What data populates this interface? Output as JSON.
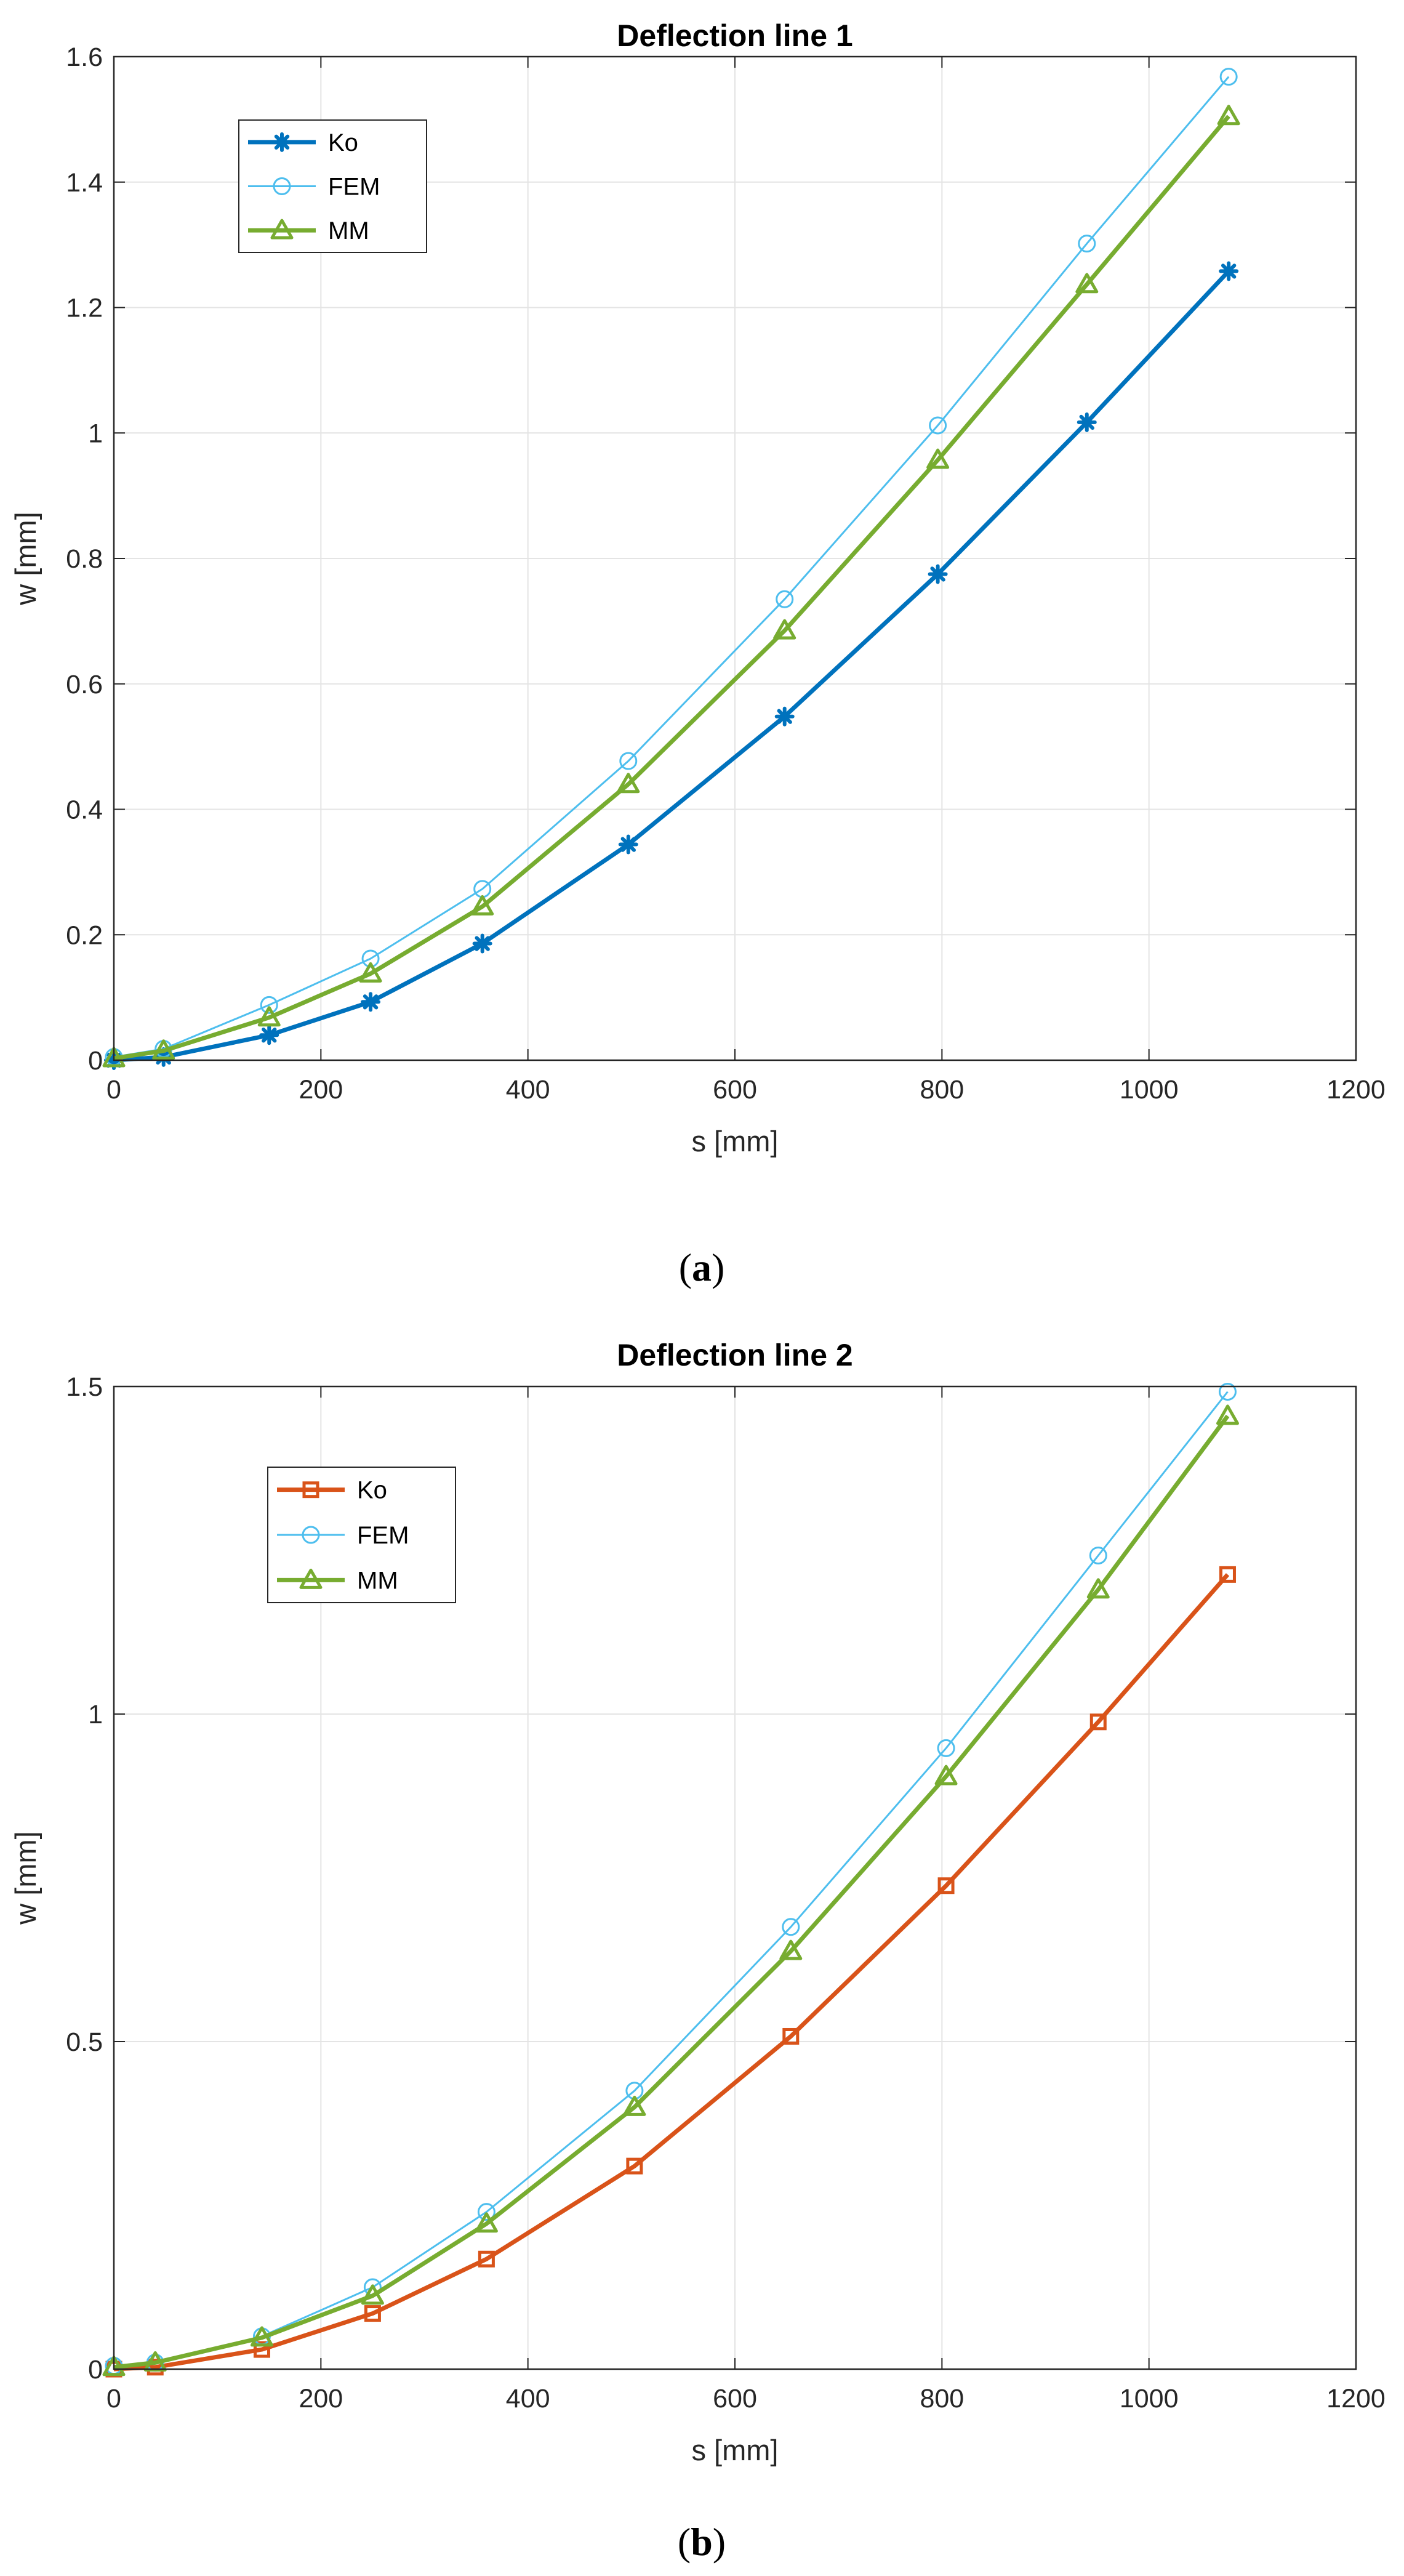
{
  "chart_data": [
    {
      "type": "line",
      "title": "Deflection line 1",
      "xlabel": "s [mm]",
      "ylabel": "w [mm]",
      "xlim": [
        0,
        1200
      ],
      "ylim": [
        0,
        1.6
      ],
      "xticks": [
        0,
        200,
        400,
        600,
        800,
        1000,
        1200
      ],
      "yticks": [
        0,
        0.2,
        0.4,
        0.6,
        0.8,
        1,
        1.2,
        1.4,
        1.6
      ],
      "xtick_labels": [
        "0",
        "200",
        "400",
        "600",
        "800",
        "1000",
        "1200"
      ],
      "ytick_labels": [
        "0",
        "0.2",
        "0.4",
        "0.6",
        "0.8",
        "1",
        "1.2",
        "1.4",
        "1.6"
      ],
      "grid": true,
      "legend_position": "top-left",
      "caption": "a",
      "series": [
        {
          "name": "Ko",
          "color": "#0072BD",
          "marker": "asterisk",
          "line": "thick",
          "x": [
            0,
            48,
            150,
            248,
            356,
            497,
            648,
            796,
            940,
            1077
          ],
          "y": [
            0.0,
            0.005,
            0.04,
            0.093,
            0.186,
            0.344,
            0.548,
            0.775,
            1.017,
            1.258
          ]
        },
        {
          "name": "FEM",
          "color": "#4DBEEE",
          "marker": "circle",
          "line": "thin",
          "x": [
            0,
            48,
            150,
            248,
            356,
            497,
            648,
            796,
            940,
            1077
          ],
          "y": [
            0.005,
            0.018,
            0.088,
            0.162,
            0.273,
            0.477,
            0.735,
            1.012,
            1.302,
            1.568
          ]
        },
        {
          "name": "MM",
          "color": "#77AC30",
          "marker": "triangle",
          "line": "thick",
          "x": [
            0,
            48,
            150,
            248,
            356,
            497,
            648,
            796,
            940,
            1077
          ],
          "y": [
            0.003,
            0.015,
            0.068,
            0.138,
            0.245,
            0.44,
            0.685,
            0.957,
            1.237,
            1.505
          ]
        }
      ]
    },
    {
      "type": "line",
      "title": "Deflection line 2",
      "xlabel": "s [mm]",
      "ylabel": "w [mm]",
      "xlim": [
        0,
        1200
      ],
      "ylim": [
        0,
        1.5
      ],
      "xticks": [
        0,
        200,
        400,
        600,
        800,
        1000,
        1200
      ],
      "yticks": [
        0,
        0.5,
        1,
        1.5
      ],
      "xtick_labels": [
        "0",
        "200",
        "400",
        "600",
        "800",
        "1000",
        "1200"
      ],
      "ytick_labels": [
        "0",
        "0.5",
        "1",
        "1.5"
      ],
      "grid": true,
      "legend_position": "top-left",
      "caption": "b",
      "series": [
        {
          "name": "Ko",
          "color": "#D95319",
          "marker": "square",
          "line": "thick",
          "x": [
            0,
            40,
            143,
            250,
            360,
            503,
            654,
            804,
            951,
            1076
          ],
          "y": [
            0.0,
            0.003,
            0.03,
            0.085,
            0.168,
            0.31,
            0.508,
            0.738,
            0.988,
            1.213
          ]
        },
        {
          "name": "FEM",
          "color": "#4DBEEE",
          "marker": "circle",
          "line": "thin",
          "x": [
            0,
            40,
            143,
            250,
            360,
            503,
            654,
            804,
            951,
            1076
          ],
          "y": [
            0.005,
            0.01,
            0.05,
            0.125,
            0.24,
            0.425,
            0.675,
            0.948,
            1.242,
            1.492
          ]
        },
        {
          "name": "MM",
          "color": "#77AC30",
          "marker": "triangle",
          "line": "thick",
          "x": [
            0,
            40,
            143,
            250,
            360,
            503,
            654,
            804,
            951,
            1076
          ],
          "y": [
            0.003,
            0.01,
            0.048,
            0.112,
            0.222,
            0.4,
            0.638,
            0.905,
            1.19,
            1.455
          ]
        }
      ]
    }
  ]
}
